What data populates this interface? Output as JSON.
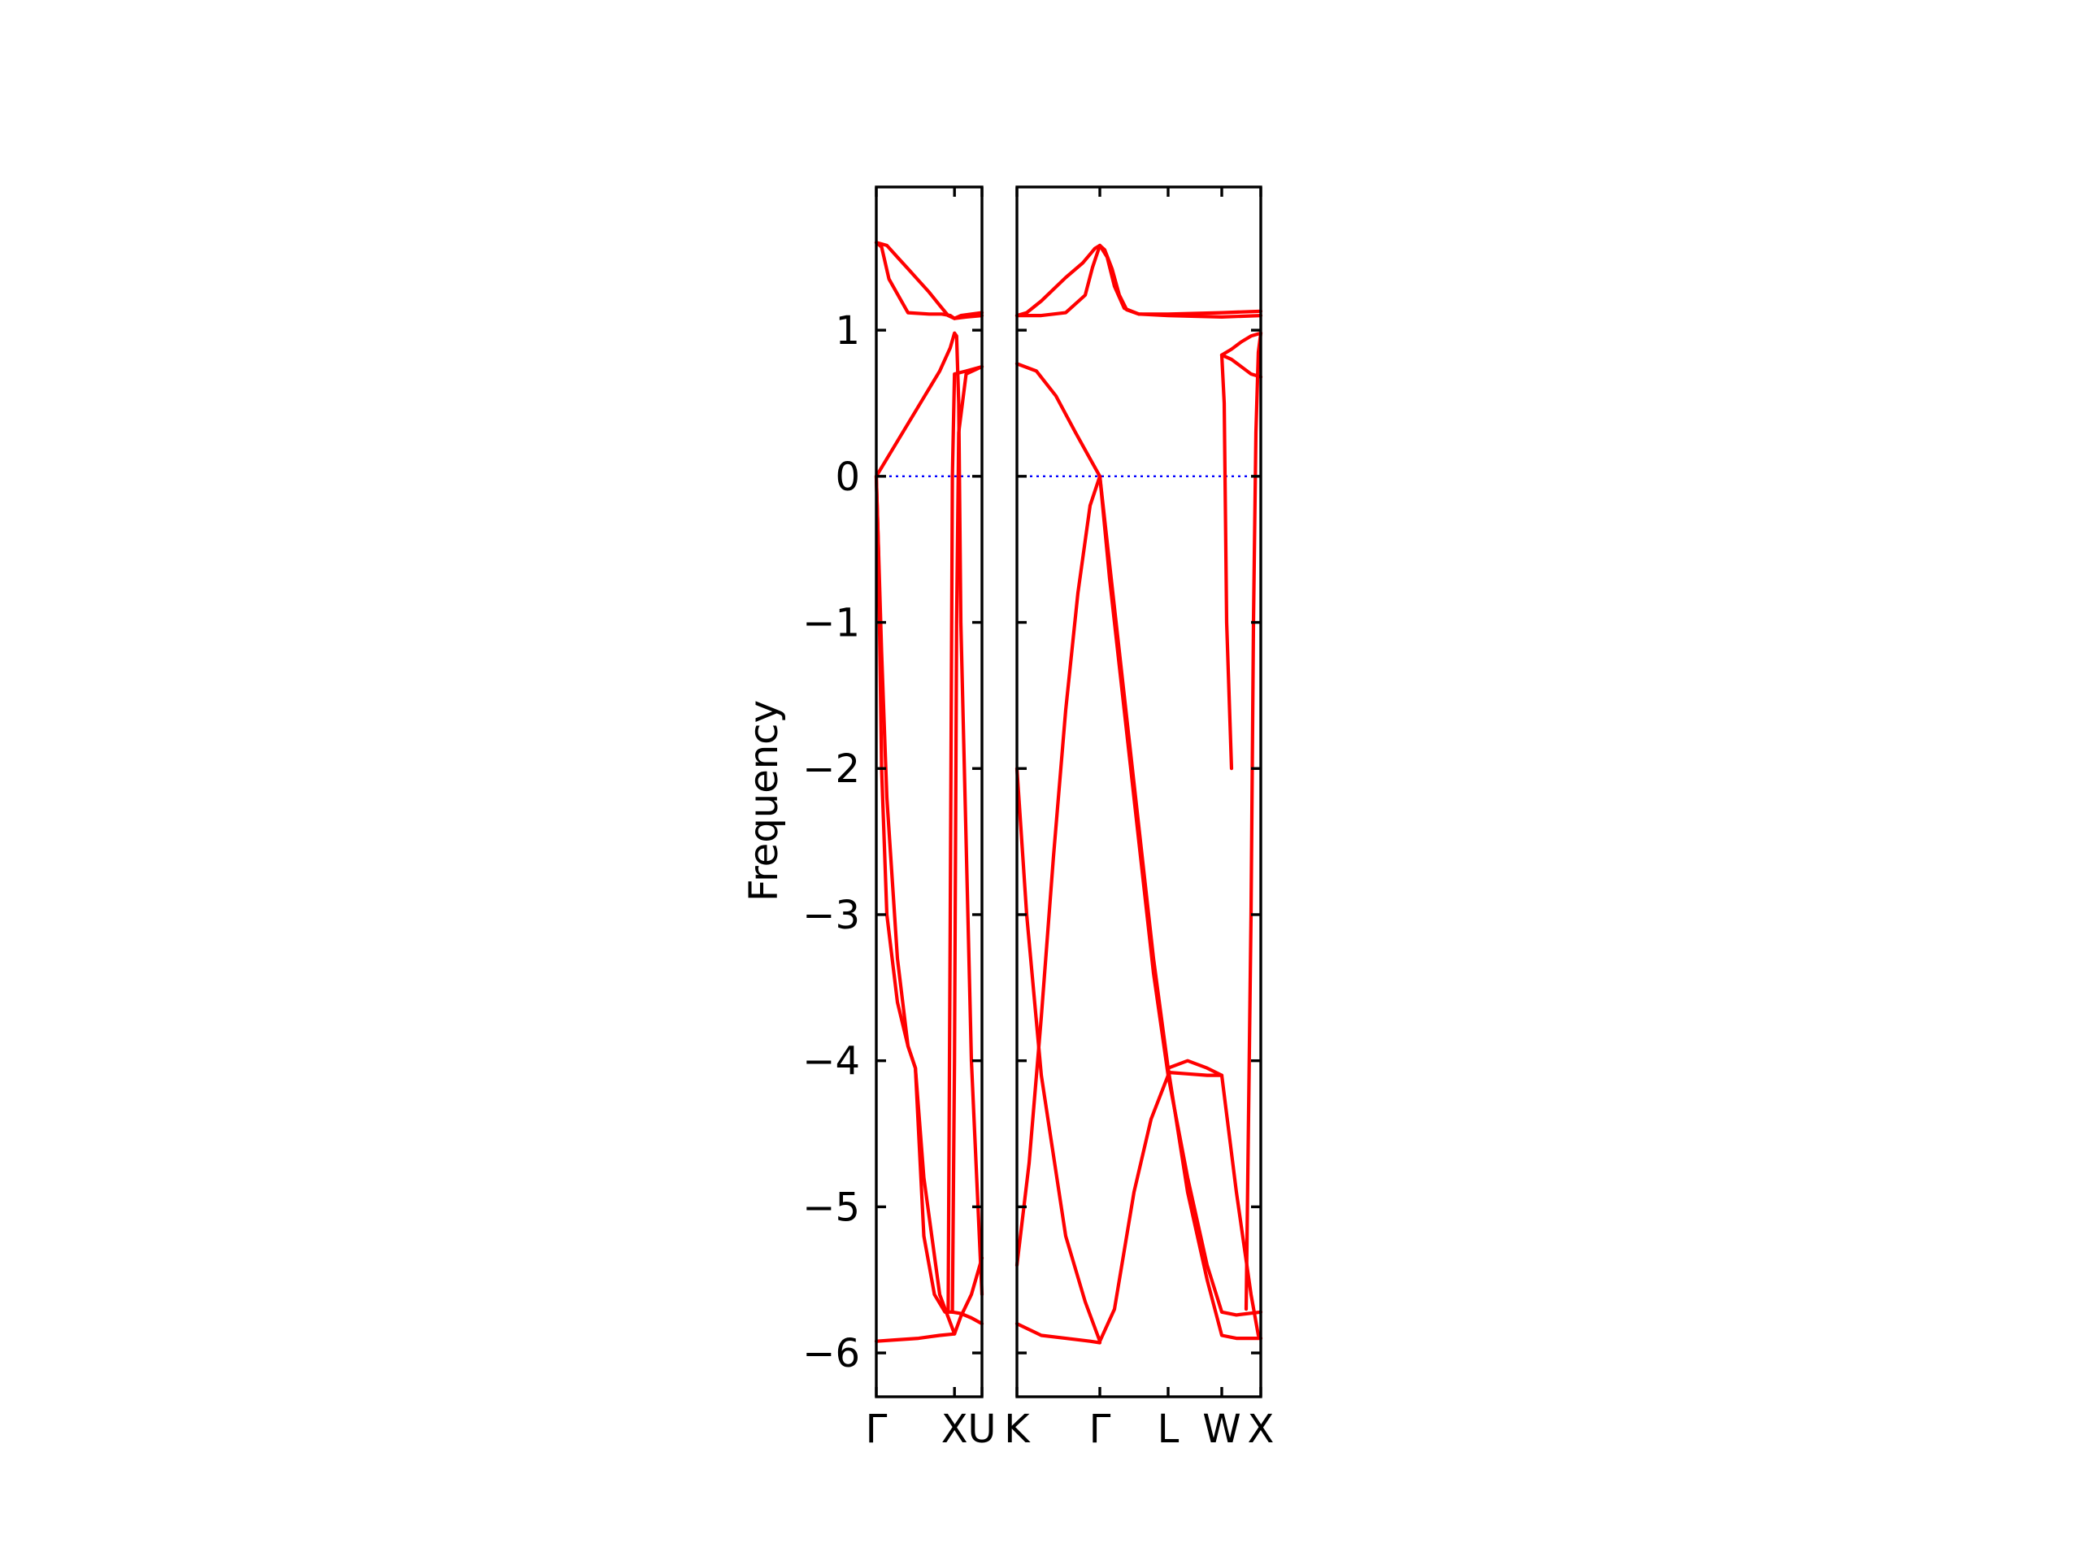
{
  "chart_data": {
    "type": "line",
    "ylabel": "Frequency",
    "ylim": [
      -6.3,
      1.98
    ],
    "yticks": [
      1,
      0,
      -1,
      -2,
      -3,
      -4,
      -5,
      -6
    ],
    "ytick_labels": [
      "1",
      "0",
      "−1",
      "−2",
      "−3",
      "−4",
      "−5",
      "−6"
    ],
    "zero_line": {
      "y": 0,
      "color": "#0000ff",
      "style": "dotted"
    },
    "line_color": "#ff0000",
    "panels": [
      {
        "path": [
          "Γ",
          "X",
          "U"
        ],
        "xticks": [
          0,
          0.74,
          1.0
        ],
        "xtick_labels": [
          "Γ",
          "X",
          "U"
        ],
        "series": [
          {
            "x": [
              0,
              0.05,
              0.12,
              0.3,
              0.5,
              0.62,
              0.7,
              0.74,
              0.8,
              1.0
            ],
            "y": [
              1.6,
              1.57,
              1.35,
              1.12,
              1.11,
              1.11,
              1.1,
              1.08,
              1.1,
              1.12
            ]
          },
          {
            "x": [
              0,
              0.1,
              0.2,
              0.3,
              0.4,
              0.5,
              0.6,
              0.68,
              0.74,
              0.85,
              1.0
            ],
            "y": [
              1.6,
              1.58,
              1.5,
              1.42,
              1.34,
              1.26,
              1.17,
              1.1,
              1.08,
              1.09,
              1.1
            ]
          },
          {
            "x": [
              0,
              0.2,
              0.4,
              0.6,
              0.7,
              0.74,
              0.76,
              0.78,
              0.8,
              0.9,
              1.0
            ],
            "y": [
              0,
              0.24,
              0.48,
              0.72,
              0.88,
              0.98,
              0.96,
              0.5,
              -1.0,
              -4.0,
              -5.6
            ]
          },
          {
            "x": [
              0,
              0.05,
              0.1,
              0.2,
              0.3,
              0.37,
              0.45,
              0.55,
              0.65,
              0.72
            ],
            "y": [
              0,
              -1.2,
              -2.2,
              -3.3,
              -3.9,
              -4.05,
              -5.2,
              -5.6,
              -5.72,
              -5.72
            ]
          },
          {
            "x": [
              0.72,
              0.8,
              0.9,
              1.0
            ],
            "y": [
              -5.72,
              -5.73,
              -5.76,
              -5.8
            ]
          },
          {
            "x": [
              0,
              0.2,
              0.4,
              0.6,
              0.74,
              0.8,
              0.9,
              1.0
            ],
            "y": [
              -5.92,
              -5.91,
              -5.9,
              -5.88,
              -5.87,
              -5.75,
              -5.6,
              -5.35
            ]
          },
          {
            "x": [
              0,
              0.02,
              0.05,
              0.1,
              0.2,
              0.3,
              0.37,
              0.45,
              0.6,
              0.74
            ],
            "y": [
              0,
              -0.5,
              -2.0,
              -3.0,
              -3.6,
              -3.9,
              -4.05,
              -4.8,
              -5.6,
              -5.87
            ]
          },
          {
            "x": [
              0.68,
              0.7,
              0.72,
              0.74,
              0.85,
              1.0
            ],
            "y": [
              -5.72,
              -3.0,
              0.0,
              0.7,
              0.72,
              0.75
            ]
          },
          {
            "x": [
              0.72,
              0.74,
              0.76,
              0.78,
              0.85,
              1.0
            ],
            "y": [
              -5.72,
              -4.0,
              -1.0,
              0.3,
              0.7,
              0.75
            ]
          }
        ]
      },
      {
        "path": [
          "K",
          "Γ",
          "L",
          "W",
          "X"
        ],
        "xticks": [
          0,
          0.34,
          0.62,
          0.84,
          1.0
        ],
        "xtick_labels": [
          "K",
          "Γ",
          "L",
          "W",
          "X"
        ],
        "series": [
          {
            "x": [
              0,
              0.04,
              0.1,
              0.2,
              0.27,
              0.3,
              0.32,
              0.34,
              0.36,
              0.39,
              0.42,
              0.45,
              0.5,
              0.62,
              0.84,
              1.0
            ],
            "y": [
              1.1,
              1.12,
              1.2,
              1.36,
              1.46,
              1.52,
              1.56,
              1.58,
              1.55,
              1.42,
              1.24,
              1.14,
              1.11,
              1.1,
              1.09,
              1.1
            ]
          },
          {
            "x": [
              0,
              0.1,
              0.2,
              0.28,
              0.31,
              0.34,
              0.37,
              0.4,
              0.44,
              0.5,
              0.62,
              0.84,
              1.0
            ],
            "y": [
              1.1,
              1.1,
              1.12,
              1.24,
              1.43,
              1.58,
              1.5,
              1.3,
              1.15,
              1.11,
              1.11,
              1.12,
              1.13
            ]
          },
          {
            "x": [
              0,
              0.08,
              0.16,
              0.24,
              0.3,
              0.34
            ],
            "y": [
              0.77,
              0.72,
              0.55,
              0.3,
              0.12,
              0.0
            ]
          },
          {
            "x": [
              0.84,
              0.88,
              0.92,
              0.96,
              1.0
            ],
            "y": [
              0.83,
              0.87,
              0.92,
              0.96,
              0.98
            ]
          },
          {
            "x": [
              0.84,
              0.88,
              0.92,
              0.96,
              1.0
            ],
            "y": [
              0.83,
              0.8,
              0.75,
              0.7,
              0.68
            ]
          },
          {
            "x": [
              0.84,
              0.85,
              0.86,
              0.88
            ],
            "y": [
              0.83,
              0.5,
              -1.0,
              -2.0
            ]
          },
          {
            "x": [
              0,
              0.04,
              0.1,
              0.2,
              0.28,
              0.34,
              0.4,
              0.48,
              0.55,
              0.62
            ],
            "y": [
              -2.0,
              -3.0,
              -4.1,
              -5.2,
              -5.65,
              -5.92,
              -5.7,
              -4.9,
              -4.4,
              -4.1
            ]
          },
          {
            "x": [
              0,
              0.05,
              0.1,
              0.15,
              0.2,
              0.25,
              0.3,
              0.34
            ],
            "y": [
              -5.4,
              -4.7,
              -3.7,
              -2.6,
              -1.6,
              -0.8,
              -0.2,
              0.0
            ]
          },
          {
            "x": [
              0,
              0.1,
              0.2,
              0.3,
              0.34
            ],
            "y": [
              -5.8,
              -5.88,
              -5.9,
              -5.92,
              -5.93
            ]
          },
          {
            "x": [
              0.34,
              0.38,
              0.44,
              0.5,
              0.56,
              0.62,
              0.7,
              0.78,
              0.84,
              0.9,
              0.98,
              1.0
            ],
            "y": [
              0.0,
              -0.6,
              -1.5,
              -2.4,
              -3.3,
              -4.05,
              -4.9,
              -5.5,
              -5.88,
              -5.9,
              -5.9,
              -5.9
            ]
          },
          {
            "x": [
              0.34,
              0.38,
              0.44,
              0.5,
              0.56,
              0.62,
              0.7,
              0.78,
              0.84,
              0.9,
              1.0
            ],
            "y": [
              0.0,
              -0.7,
              -1.6,
              -2.5,
              -3.4,
              -4.1,
              -4.8,
              -5.4,
              -5.72,
              -5.74,
              -5.72
            ]
          },
          {
            "x": [
              0.62,
              0.7,
              0.78,
              0.84
            ],
            "y": [
              -4.08,
              -4.09,
              -4.1,
              -4.1
            ]
          },
          {
            "x": [
              0.62,
              0.7,
              0.78,
              0.84
            ],
            "y": [
              -4.05,
              -4.0,
              -4.05,
              -4.1
            ]
          },
          {
            "x": [
              0.84,
              0.9,
              0.96,
              0.99,
              1.0
            ],
            "y": [
              -4.1,
              -4.9,
              -5.6,
              -5.88,
              -5.9
            ]
          },
          {
            "x": [
              0.94,
              0.96,
              0.97,
              0.98,
              0.99,
              1.0
            ],
            "y": [
              -5.7,
              -3.0,
              -1.0,
              0.3,
              0.85,
              0.98
            ]
          }
        ]
      }
    ]
  }
}
